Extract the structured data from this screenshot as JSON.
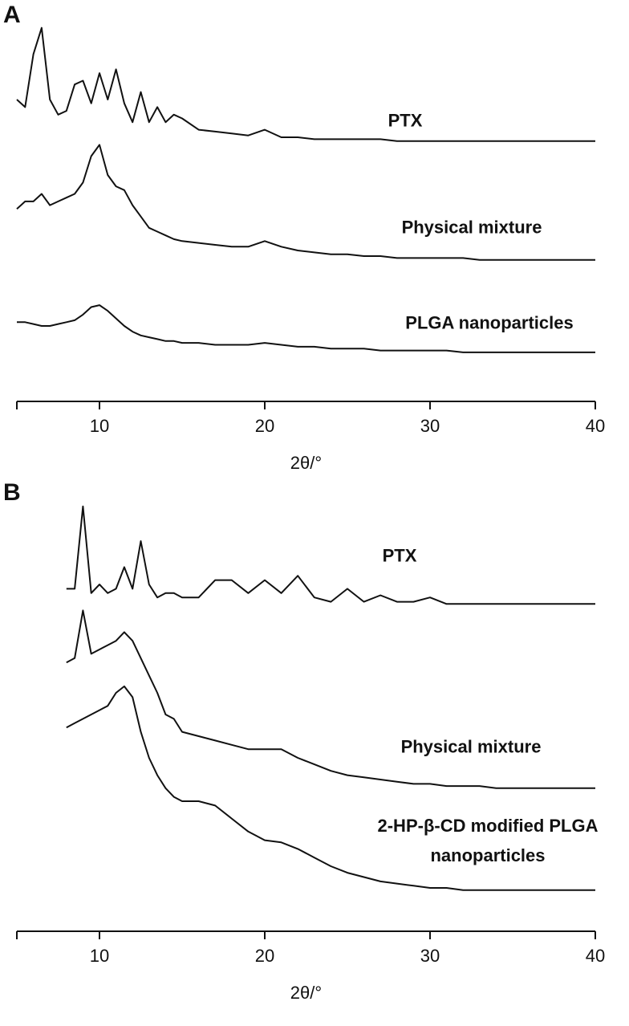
{
  "chart_data": [
    {
      "type": "line",
      "panel": "A",
      "xlabel": "2θ/°",
      "xlim": [
        5,
        40
      ],
      "xticks": [
        10,
        20,
        30,
        40
      ],
      "ylim": [
        0,
        100
      ],
      "color": "#111111",
      "x": [
        5,
        5.5,
        6,
        6.5,
        7,
        7.5,
        8,
        8.5,
        9,
        9.5,
        10,
        10.5,
        11,
        11.5,
        12,
        12.5,
        13,
        13.5,
        14,
        14.5,
        15,
        16,
        17,
        18,
        19,
        20,
        21,
        22,
        23,
        24,
        25,
        26,
        27,
        28,
        29,
        30,
        31,
        32,
        33,
        34,
        35,
        36,
        37,
        38,
        39,
        40
      ],
      "series": [
        {
          "name": "PTX",
          "values": [
            80,
            78,
            92,
            99,
            80,
            76,
            77,
            84,
            85,
            79,
            87,
            80,
            88,
            79,
            74,
            82,
            74,
            78,
            74,
            76,
            75,
            72,
            71.5,
            71,
            70.5,
            72,
            70,
            70,
            69.5,
            69.5,
            69.5,
            69.5,
            69.5,
            69,
            69,
            69,
            69,
            69,
            69,
            69,
            69,
            69,
            69,
            69,
            69,
            69
          ]
        },
        {
          "name": "Physical mixture",
          "values": [
            51,
            53,
            53,
            55,
            52,
            53,
            54,
            55,
            58,
            65,
            68,
            60,
            57,
            56,
            52,
            49,
            46,
            45,
            44,
            43,
            42.5,
            42,
            41.5,
            41,
            41,
            42.5,
            41,
            40,
            39.5,
            39,
            39,
            38.5,
            38.5,
            38,
            38,
            38,
            38,
            38,
            37.5,
            37.5,
            37.5,
            37.5,
            37.5,
            37.5,
            37.5,
            37.5
          ]
        },
        {
          "name": "PLGA nanoparticles",
          "values": [
            21,
            21,
            20.5,
            20,
            20,
            20.5,
            21,
            21.5,
            23,
            25,
            25.5,
            24,
            22,
            20,
            18.5,
            17.5,
            17,
            16.5,
            16,
            16,
            15.5,
            15.5,
            15,
            15,
            15,
            15.5,
            15,
            14.5,
            14.5,
            14,
            14,
            14,
            13.5,
            13.5,
            13.5,
            13.5,
            13.5,
            13,
            13,
            13,
            13,
            13,
            13,
            13,
            13,
            13
          ]
        }
      ]
    },
    {
      "type": "line",
      "panel": "B",
      "xlabel": "2θ/°",
      "xlim": [
        5,
        40
      ],
      "xticks": [
        10,
        20,
        30,
        40
      ],
      "ylim": [
        0,
        100
      ],
      "color": "#111111",
      "x": [
        8,
        8.5,
        9,
        9.5,
        10,
        10.5,
        11,
        11.5,
        12,
        12.5,
        13,
        13.5,
        14,
        14.5,
        15,
        16,
        17,
        18,
        19,
        20,
        21,
        22,
        23,
        24,
        25,
        26,
        27,
        28,
        29,
        30,
        31,
        32,
        33,
        34,
        35,
        36,
        37,
        38,
        39,
        40
      ],
      "series": [
        {
          "name": "PTX",
          "values": [
            79,
            79,
            98,
            78,
            80,
            78,
            79,
            84,
            79,
            90,
            80,
            77,
            78,
            78,
            77,
            77,
            81,
            81,
            78,
            81,
            78,
            82,
            77,
            76,
            79,
            76,
            77.5,
            76,
            76,
            77,
            75.5,
            75.5,
            75.5,
            75.5,
            75.5,
            75.5,
            75.5,
            75.5,
            75.5,
            75.5
          ]
        },
        {
          "name": "Physical mixture",
          "values": [
            62,
            63,
            74,
            64,
            65,
            66,
            67,
            69,
            67,
            63,
            59,
            55,
            50,
            49,
            46,
            45,
            44,
            43,
            42,
            42,
            42,
            40,
            38.5,
            37,
            36,
            35.5,
            35,
            34.5,
            34,
            34,
            33.5,
            33.5,
            33.5,
            33,
            33,
            33,
            33,
            33,
            33,
            33
          ]
        },
        {
          "name": "2-HP-β-CD modified PLGA nanoparticles",
          "values": [
            47,
            48,
            49,
            50,
            51,
            52,
            55,
            56.5,
            54,
            46,
            40,
            36,
            33,
            31,
            30,
            30,
            29,
            26,
            23,
            21,
            20.5,
            19,
            17,
            15,
            13.5,
            12.5,
            11.5,
            11,
            10.5,
            10,
            10,
            9.5,
            9.5,
            9.5,
            9.5,
            9.5,
            9.5,
            9.5,
            9.5,
            9.5
          ]
        }
      ]
    }
  ]
}
